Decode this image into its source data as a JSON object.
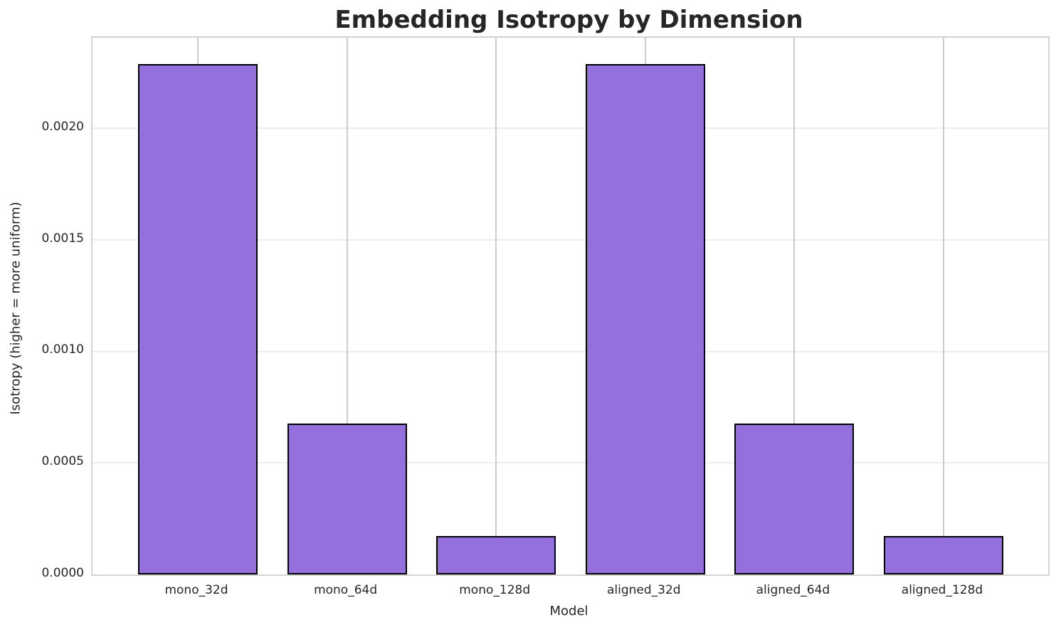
{
  "chart_data": {
    "type": "bar",
    "title": "Embedding Isotropy by Dimension",
    "xlabel": "Model",
    "ylabel": "Isotropy (higher = more uniform)",
    "categories": [
      "mono_32d",
      "mono_64d",
      "mono_128d",
      "aligned_32d",
      "aligned_64d",
      "aligned_128d"
    ],
    "values": [
      0.002287,
      0.000676,
      0.000173,
      0.002287,
      0.000676,
      0.000173
    ],
    "ylim": [
      0,
      0.002405
    ],
    "yticks": [
      0.0,
      0.0005,
      0.001,
      0.0015,
      0.002
    ],
    "ytick_labels": [
      "0.0000",
      "0.0005",
      "0.0010",
      "0.0015",
      "0.0020"
    ],
    "grid": true,
    "legend_position": "none",
    "bar_color": "#9370db",
    "bar_edge_color": "#000000",
    "hgrid_color": "#ececec",
    "vgrid_color": "#cccccc",
    "spine_color": "#d3d3d3",
    "text_color": "#262626"
  }
}
